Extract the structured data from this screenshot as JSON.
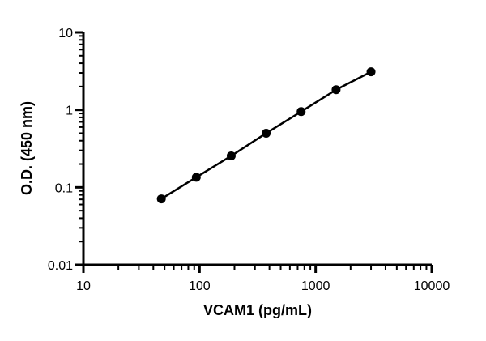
{
  "chart_data": {
    "type": "line",
    "title": "",
    "xlabel": "VCAM1 (pg/mL)",
    "ylabel": "O.D. (450 nm)",
    "xscale": "log",
    "yscale": "log",
    "xlim": [
      10,
      10000
    ],
    "ylim": [
      0.01,
      10
    ],
    "xticks": [
      10,
      100,
      1000,
      10000
    ],
    "xtick_labels": [
      "10",
      "100",
      "1000",
      "10000"
    ],
    "yticks": [
      0.01,
      0.1,
      1,
      10
    ],
    "ytick_labels": [
      "0.01",
      "0.1",
      "1",
      "10"
    ],
    "grid": false,
    "markers": "filled-circle",
    "color": "#000000",
    "series": [
      {
        "x": [
          46.875,
          93.75,
          187.5,
          375,
          750,
          1500,
          3000
        ],
        "y": [
          0.071,
          0.135,
          0.255,
          0.5,
          0.95,
          1.82,
          3.1
        ]
      }
    ]
  }
}
